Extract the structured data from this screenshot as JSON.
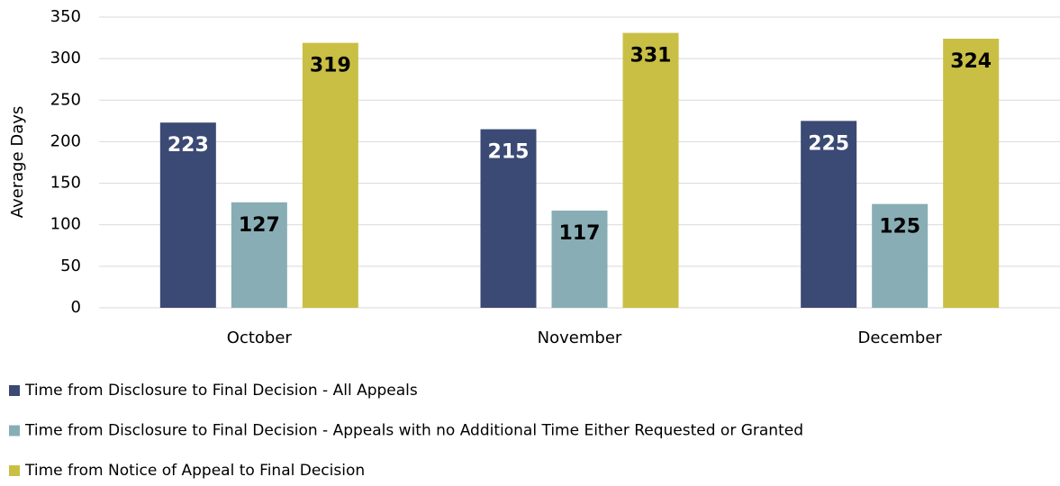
{
  "chart_data": {
    "type": "bar",
    "y_label": "Average Days",
    "categories": [
      "October",
      "November",
      "December"
    ],
    "series": [
      {
        "name": "Time from Disclosure to Final Decision - All Appeals",
        "color": "#3b4a74",
        "values": [
          223,
          215,
          225
        ]
      },
      {
        "name": "Time from Disclosure to Final Decision - Appeals with no Additional Time Either Requested or Granted",
        "color": "#88adb5",
        "values": [
          127,
          117,
          125
        ]
      },
      {
        "name": "Time from Notice of Appeal to Final Decision",
        "color": "#c9bf45",
        "values": [
          319,
          331,
          324
        ]
      }
    ],
    "ylim": [
      0,
      350
    ],
    "yticks": [
      0,
      50,
      100,
      150,
      200,
      250,
      300,
      350
    ],
    "grid": true,
    "legend": "bottom"
  }
}
